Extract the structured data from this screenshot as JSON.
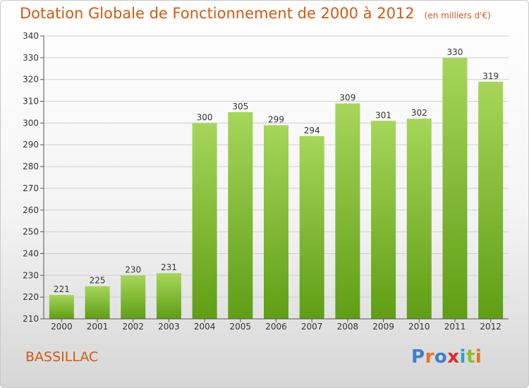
{
  "title": "Dotation Globale de Fonctionnement de 2000 à 2012",
  "unit": "(en milliers d'€)",
  "city": "BASSILLAC",
  "logo": {
    "text": "Proxiti",
    "letter_colors": [
      "#3b7fd0",
      "#e8731c",
      "#3b7fd0",
      "#e02a2a",
      "#2aa3c8",
      "#8bbf2c",
      "#e8731c"
    ]
  },
  "colors": {
    "bar_top": "#a6d65a",
    "bar_bottom": "#5f9e14",
    "accent": "#d15a10"
  },
  "chart_data": {
    "type": "bar",
    "categories": [
      "2000",
      "2001",
      "2002",
      "2003",
      "2004",
      "2005",
      "2006",
      "2007",
      "2008",
      "2009",
      "2010",
      "2011",
      "2012"
    ],
    "values": [
      221,
      225,
      230,
      231,
      300,
      305,
      299,
      294,
      309,
      301,
      302,
      330,
      319
    ],
    "ylim": [
      210,
      340
    ],
    "yticks": [
      210,
      220,
      230,
      240,
      250,
      260,
      270,
      280,
      290,
      300,
      310,
      320,
      330,
      340
    ],
    "grid": true,
    "title": "Dotation Globale de Fonctionnement de 2000 à 2012",
    "xlabel": "",
    "ylabel": ""
  }
}
